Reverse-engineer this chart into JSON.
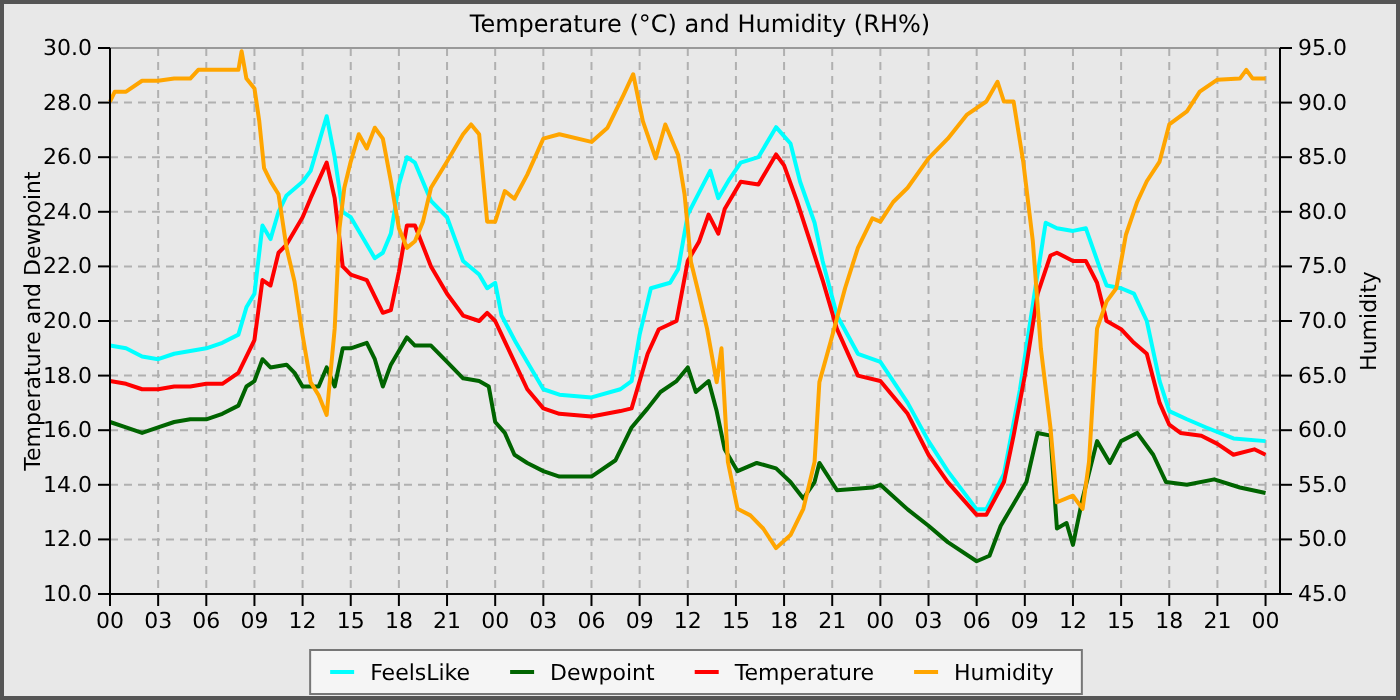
{
  "chart_data": {
    "type": "line",
    "title": "Temperature (°C) and Humidity (RH%)",
    "ylabel": "Temperature and Dewpoint",
    "y2label": "Humidity",
    "xlim": [
      0,
      72.9
    ],
    "xticks": [
      {
        "value": 0,
        "label": "00"
      },
      {
        "value": 3,
        "label": "03"
      },
      {
        "value": 6,
        "label": "06"
      },
      {
        "value": 9,
        "label": "09"
      },
      {
        "value": 12,
        "label": "12"
      },
      {
        "value": 15,
        "label": "15"
      },
      {
        "value": 18,
        "label": "18"
      },
      {
        "value": 21,
        "label": "21"
      },
      {
        "value": 24,
        "label": "00"
      },
      {
        "value": 27,
        "label": "03"
      },
      {
        "value": 30,
        "label": "06"
      },
      {
        "value": 33,
        "label": "09"
      },
      {
        "value": 36,
        "label": "12"
      },
      {
        "value": 39,
        "label": "15"
      },
      {
        "value": 42,
        "label": "18"
      },
      {
        "value": 45,
        "label": "21"
      },
      {
        "value": 48,
        "label": "00"
      },
      {
        "value": 51,
        "label": "03"
      },
      {
        "value": 54,
        "label": "06"
      },
      {
        "value": 57,
        "label": "09"
      },
      {
        "value": 60,
        "label": "12"
      },
      {
        "value": 63,
        "label": "15"
      },
      {
        "value": 66,
        "label": "18"
      },
      {
        "value": 69,
        "label": "21"
      },
      {
        "value": 72,
        "label": "00"
      }
    ],
    "ylim": [
      10,
      30
    ],
    "yticks": [
      {
        "value": 10,
        "label": "10.0"
      },
      {
        "value": 12,
        "label": "12.0"
      },
      {
        "value": 14,
        "label": "14.0"
      },
      {
        "value": 16,
        "label": "16.0"
      },
      {
        "value": 18,
        "label": "18.0"
      },
      {
        "value": 20,
        "label": "20.0"
      },
      {
        "value": 22,
        "label": "22.0"
      },
      {
        "value": 24,
        "label": "24.0"
      },
      {
        "value": 26,
        "label": "26.0"
      },
      {
        "value": 28,
        "label": "28.0"
      },
      {
        "value": 30,
        "label": "30.0"
      }
    ],
    "y2lim": [
      45,
      95
    ],
    "y2ticks": [
      {
        "value": 45,
        "label": "45.0"
      },
      {
        "value": 50,
        "label": "50.0"
      },
      {
        "value": 55,
        "label": "55.0"
      },
      {
        "value": 60,
        "label": "60.0"
      },
      {
        "value": 65,
        "label": "65.0"
      },
      {
        "value": 70,
        "label": "70.0"
      },
      {
        "value": 75,
        "label": "75.0"
      },
      {
        "value": 80,
        "label": "80.0"
      },
      {
        "value": 85,
        "label": "85.0"
      },
      {
        "value": 90,
        "label": "90.0"
      },
      {
        "value": 95,
        "label": "95.0"
      }
    ],
    "grid": true,
    "legend": "bottom",
    "line_style": "solid",
    "series": [
      {
        "name": "FeelsLike",
        "color": "#00ffff",
        "x": [
          0,
          1,
          2,
          3,
          4,
          5,
          6,
          7,
          8,
          8.5,
          9,
          9.5,
          10,
          10.5,
          11,
          12,
          12.5,
          13,
          13.5,
          14,
          14.5,
          15,
          16,
          16.5,
          17,
          17.5,
          18,
          18.5,
          19,
          20,
          21,
          21.5,
          22,
          23,
          23.5,
          24,
          24.4,
          25.3,
          26,
          27,
          28,
          30,
          31.8,
          32.5,
          33,
          33.7,
          34.9,
          35.4,
          36,
          36.7,
          37.4,
          37.9,
          38.6,
          39.3,
          40.4,
          41.5,
          42.4,
          43,
          43.9,
          44.4,
          45.3,
          46.6,
          48,
          49.7,
          51,
          52.2,
          54,
          54.6,
          55.7,
          56.7,
          57.6,
          58.3,
          59,
          60,
          60.8,
          61.7,
          62.1,
          63,
          63.8,
          64.6,
          65.4,
          66,
          67.1,
          68.3,
          70,
          72
        ],
        "values": [
          19.1,
          19.0,
          18.7,
          18.6,
          18.8,
          18.9,
          19.0,
          19.2,
          19.5,
          20.5,
          21.0,
          23.5,
          23.0,
          24.0,
          24.6,
          25.1,
          25.5,
          26.5,
          27.5,
          26.0,
          24.0,
          23.8,
          22.8,
          22.3,
          22.5,
          23.2,
          25.0,
          26.0,
          25.8,
          24.4,
          23.8,
          23.0,
          22.2,
          21.7,
          21.2,
          21.4,
          20.2,
          19.2,
          18.5,
          17.5,
          17.3,
          17.2,
          17.5,
          17.8,
          19.5,
          21.2,
          21.4,
          21.9,
          23.9,
          24.7,
          25.5,
          24.5,
          25.2,
          25.8,
          26.0,
          27.1,
          26.5,
          25.1,
          23.6,
          22.2,
          20.2,
          18.8,
          18.5,
          17.0,
          15.6,
          14.5,
          13.1,
          13.1,
          14.4,
          17.5,
          21.0,
          23.6,
          23.4,
          23.3,
          23.4,
          21.9,
          21.3,
          21.2,
          21.0,
          20.0,
          17.8,
          16.7,
          16.4,
          16.1,
          15.7,
          15.6
        ]
      },
      {
        "name": "Dewpoint",
        "color": "#006400",
        "x": [
          0,
          1,
          2,
          3,
          4,
          5,
          6,
          7,
          8,
          8.5,
          9,
          9.5,
          10,
          11,
          11.5,
          12,
          13,
          13.5,
          14,
          14.5,
          15,
          16,
          16.5,
          17,
          17.5,
          18,
          18.5,
          19,
          20,
          21,
          22,
          23,
          23.6,
          24,
          24.6,
          25.2,
          26,
          27,
          28,
          30,
          31.5,
          32.5,
          33.5,
          34.3,
          35.3,
          36,
          36.5,
          37.3,
          37.8,
          38.3,
          39.1,
          40.3,
          41.5,
          42.4,
          43.2,
          43.9,
          44.2,
          45.3,
          47.5,
          48,
          49.7,
          51,
          52.2,
          54,
          54.8,
          55.5,
          56.3,
          57.1,
          57.8,
          58.6,
          59,
          59.6,
          60,
          60.6,
          61.5,
          62.3,
          63,
          64,
          65,
          65.8,
          67.1,
          68.8,
          70.4,
          72
        ],
        "values": [
          16.3,
          16.1,
          15.9,
          16.1,
          16.3,
          16.4,
          16.4,
          16.6,
          16.9,
          17.6,
          17.8,
          18.6,
          18.3,
          18.4,
          18.1,
          17.6,
          17.6,
          18.3,
          17.6,
          19.0,
          19.0,
          19.2,
          18.6,
          17.6,
          18.4,
          18.9,
          19.4,
          19.1,
          19.1,
          18.5,
          17.9,
          17.8,
          17.6,
          16.3,
          15.9,
          15.1,
          14.8,
          14.5,
          14.3,
          14.3,
          14.9,
          16.1,
          16.8,
          17.4,
          17.8,
          18.3,
          17.4,
          17.8,
          16.7,
          15.3,
          14.5,
          14.8,
          14.6,
          14.1,
          13.5,
          14.1,
          14.8,
          13.8,
          13.9,
          14.0,
          13.1,
          12.5,
          11.9,
          11.2,
          11.4,
          12.5,
          13.3,
          14.1,
          15.9,
          15.8,
          12.4,
          12.6,
          11.8,
          13.5,
          15.6,
          14.8,
          15.6,
          15.9,
          15.1,
          14.1,
          14.0,
          14.2,
          13.9,
          13.7
        ]
      },
      {
        "name": "Temperature",
        "color": "#ff0000",
        "x": [
          0,
          1,
          2,
          3,
          4,
          5,
          6,
          7,
          8,
          9,
          9.5,
          10,
          10.5,
          11,
          12,
          12.5,
          13.5,
          14,
          14.5,
          15,
          16,
          17,
          17.5,
          18,
          18.5,
          19,
          20,
          21,
          22,
          23,
          23.5,
          24,
          24.4,
          26,
          27,
          28,
          30,
          31.8,
          32.5,
          33.5,
          34.2,
          35.3,
          36,
          36.7,
          37.3,
          37.9,
          38.3,
          39.3,
          40.4,
          41.5,
          42,
          42.8,
          44.4,
          45.3,
          46.6,
          48,
          49.7,
          51,
          52.2,
          54,
          54.6,
          55.7,
          56.3,
          57,
          57.8,
          58.6,
          59,
          60,
          60.8,
          61.5,
          62.1,
          63,
          63.8,
          64.6,
          65.4,
          66,
          66.7,
          68,
          69,
          70,
          71.3,
          72
        ],
        "values": [
          17.8,
          17.7,
          17.5,
          17.5,
          17.6,
          17.6,
          17.7,
          17.7,
          18.1,
          19.3,
          21.5,
          21.3,
          22.5,
          22.8,
          23.8,
          24.5,
          25.8,
          24.5,
          22.0,
          21.7,
          21.5,
          20.3,
          20.4,
          21.8,
          23.5,
          23.5,
          22.0,
          21.0,
          20.2,
          20.0,
          20.3,
          20.0,
          19.5,
          17.5,
          16.8,
          16.6,
          16.5,
          16.7,
          16.8,
          18.8,
          19.7,
          20.0,
          22.2,
          22.9,
          23.9,
          23.2,
          24.1,
          25.1,
          25.0,
          26.1,
          25.7,
          24.4,
          21.5,
          19.7,
          18.0,
          17.8,
          16.6,
          15.1,
          14.1,
          12.9,
          12.9,
          14.1,
          15.8,
          18.0,
          21.0,
          22.4,
          22.5,
          22.2,
          22.2,
          21.4,
          20.0,
          19.7,
          19.2,
          18.8,
          17.0,
          16.2,
          15.9,
          15.8,
          15.5,
          15.1,
          15.3,
          15.1
        ]
      },
      {
        "name": "Humidity",
        "color": "#ffa500",
        "axis": "y2",
        "x": [
          0,
          0.3,
          1,
          2,
          3,
          4,
          5,
          5.5,
          6,
          7,
          8,
          8.2,
          8.5,
          9,
          9.3,
          9.6,
          10,
          10.5,
          11,
          11.5,
          12,
          12.5,
          13,
          13.5,
          14,
          14.3,
          14.6,
          15,
          15.5,
          16,
          16.5,
          17,
          17.5,
          18,
          18.5,
          19,
          19.5,
          20,
          21,
          22,
          22.5,
          23,
          23.5,
          24,
          24.6,
          25.2,
          26,
          27,
          28,
          30,
          31,
          32,
          32.6,
          33.2,
          34,
          34.6,
          35.4,
          35.8,
          36.2,
          36.7,
          37.2,
          37.8,
          38.1,
          38.5,
          39.1,
          39.9,
          40.7,
          41.5,
          42.4,
          43.2,
          43.9,
          44.2,
          44.9,
          45.8,
          46.6,
          47.5,
          48,
          48.8,
          49.7,
          51,
          52.2,
          53.4,
          54.6,
          55.3,
          55.7,
          56.3,
          56.9,
          57.5,
          58,
          58.6,
          59,
          60,
          60.6,
          61,
          61.5,
          62.1,
          62.7,
          63.3,
          64,
          64.6,
          65.4,
          66,
          67.1,
          67.9,
          69,
          70.4,
          70.8,
          71.2,
          72
        ],
        "values": [
          90.1,
          91.0,
          91.0,
          92.0,
          92.0,
          92.2,
          92.2,
          93.0,
          93.0,
          93.0,
          93.0,
          94.7,
          92.2,
          91.3,
          88.3,
          84.0,
          82.8,
          81.6,
          76.7,
          73.6,
          68.7,
          64.4,
          63.2,
          61.4,
          69.3,
          78.5,
          82.2,
          84.6,
          87.1,
          85.8,
          87.7,
          86.7,
          82.8,
          78.5,
          76.7,
          77.3,
          79.1,
          82.2,
          84.6,
          87.1,
          88.0,
          87.1,
          79.1,
          79.1,
          81.9,
          81.2,
          83.4,
          86.7,
          87.1,
          86.4,
          87.7,
          90.7,
          92.6,
          88.3,
          84.9,
          88.0,
          85.2,
          81.6,
          75.4,
          72.4,
          69.3,
          64.4,
          67.5,
          57.1,
          52.8,
          52.2,
          51.0,
          49.2,
          50.4,
          52.8,
          57.1,
          64.4,
          68.1,
          73.0,
          76.7,
          79.4,
          79.1,
          80.9,
          82.2,
          84.9,
          86.7,
          88.9,
          90.1,
          91.9,
          90.1,
          90.1,
          84.6,
          77.3,
          67.5,
          60.2,
          53.4,
          54.0,
          52.8,
          57.1,
          69.3,
          71.8,
          73.0,
          77.9,
          80.9,
          82.8,
          84.6,
          88.0,
          89.2,
          91.0,
          92.1,
          92.2,
          93.0,
          92.2,
          92.2
        ]
      }
    ]
  }
}
